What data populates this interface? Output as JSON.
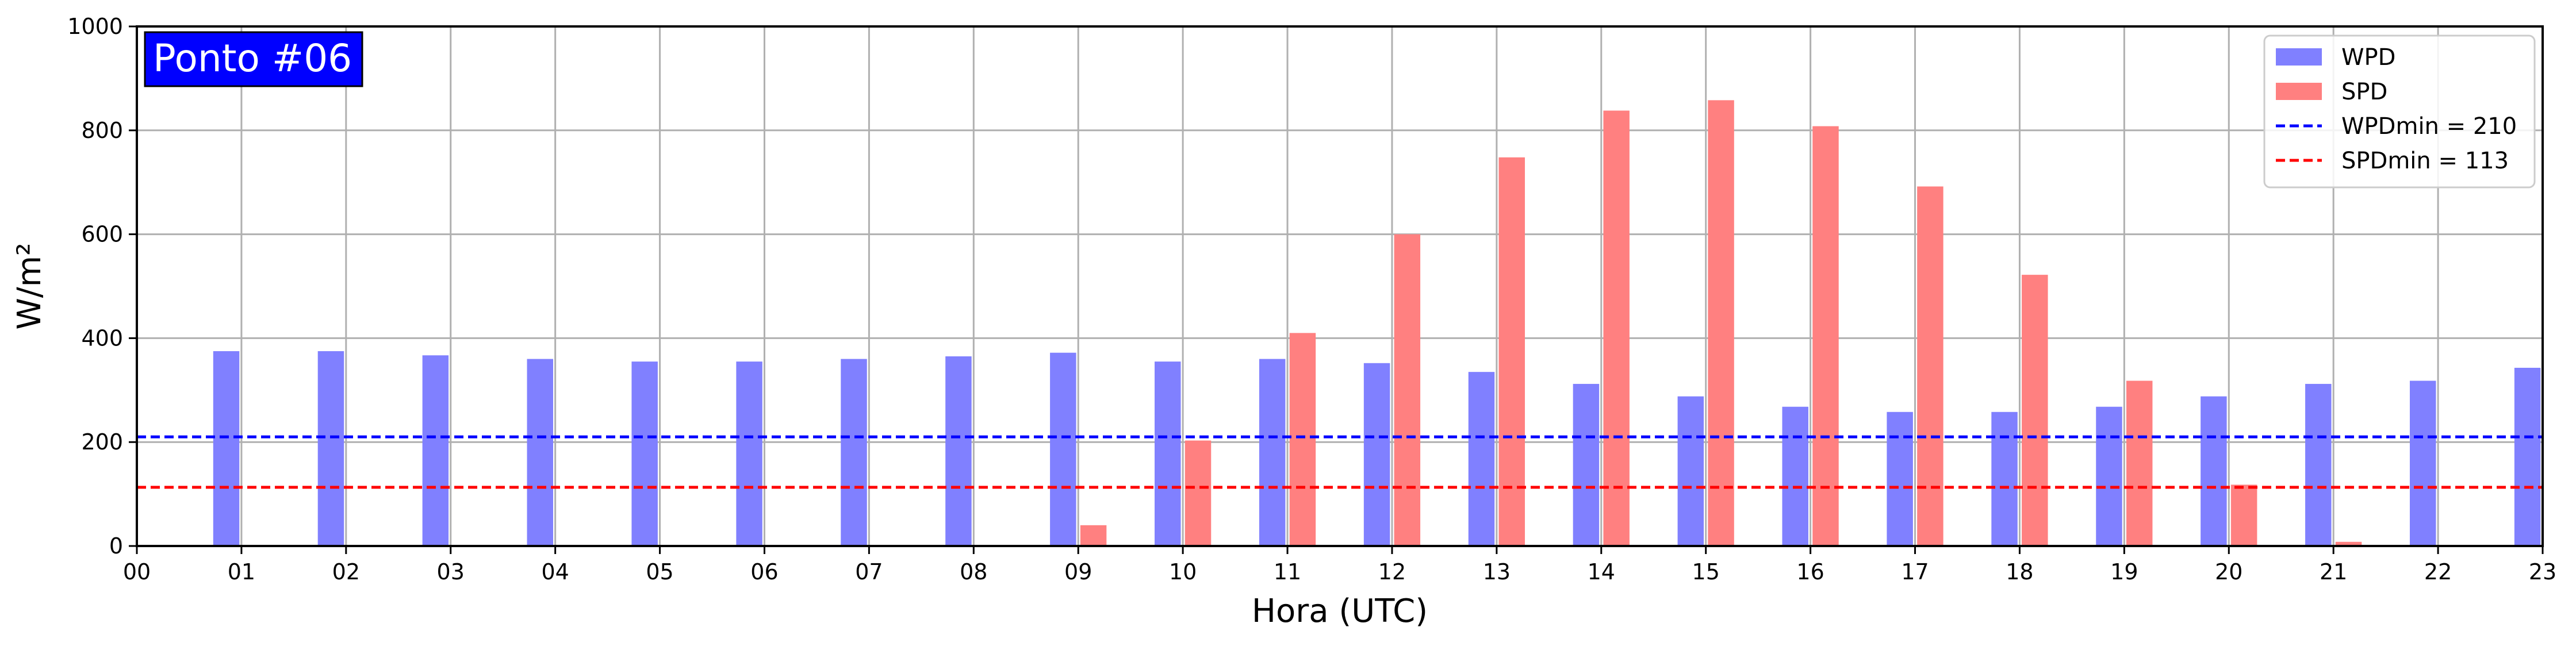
{
  "chart_data": {
    "type": "bar",
    "title": "",
    "badge": "Ponto #06",
    "xlabel": "Hora (UTC)",
    "ylabel": "W/m²",
    "ylim": [
      0,
      1000
    ],
    "yticks": [
      "0",
      "200",
      "400",
      "600",
      "800",
      "1000"
    ],
    "xticks": [
      "00",
      "01",
      "02",
      "03",
      "04",
      "05",
      "06",
      "07",
      "08",
      "09",
      "10",
      "11",
      "12",
      "13",
      "14",
      "15",
      "16",
      "17",
      "18",
      "19",
      "20",
      "21",
      "22",
      "23"
    ],
    "grid": true,
    "legend_position": "top-right",
    "series": [
      {
        "name": "WPD",
        "color": "#8080ff",
        "x": [
          "01",
          "02",
          "03",
          "04",
          "05",
          "06",
          "07",
          "08",
          "09",
          "10",
          "11",
          "12",
          "13",
          "14",
          "15",
          "16",
          "17",
          "18",
          "19",
          "20",
          "21",
          "22",
          "23"
        ],
        "values": [
          375,
          375,
          367,
          360,
          355,
          355,
          360,
          365,
          372,
          355,
          360,
          352,
          335,
          312,
          288,
          268,
          258,
          258,
          268,
          288,
          312,
          318,
          343
        ]
      },
      {
        "name": "SPD",
        "color": "#ff8080",
        "x": [
          "01",
          "02",
          "03",
          "04",
          "05",
          "06",
          "07",
          "08",
          "09",
          "10",
          "11",
          "12",
          "13",
          "14",
          "15",
          "16",
          "17",
          "18",
          "19",
          "20",
          "21",
          "22",
          "23"
        ],
        "values": [
          0,
          0,
          0,
          0,
          0,
          0,
          0,
          0,
          40,
          203,
          410,
          600,
          748,
          838,
          858,
          808,
          692,
          522,
          318,
          118,
          8,
          0,
          0
        ]
      }
    ],
    "reference_lines": [
      {
        "name": "WPDmin = 210",
        "value": 210,
        "color": "#0000ff"
      },
      {
        "name": "SPDmin = 113",
        "value": 113,
        "color": "#ff0000"
      }
    ]
  }
}
